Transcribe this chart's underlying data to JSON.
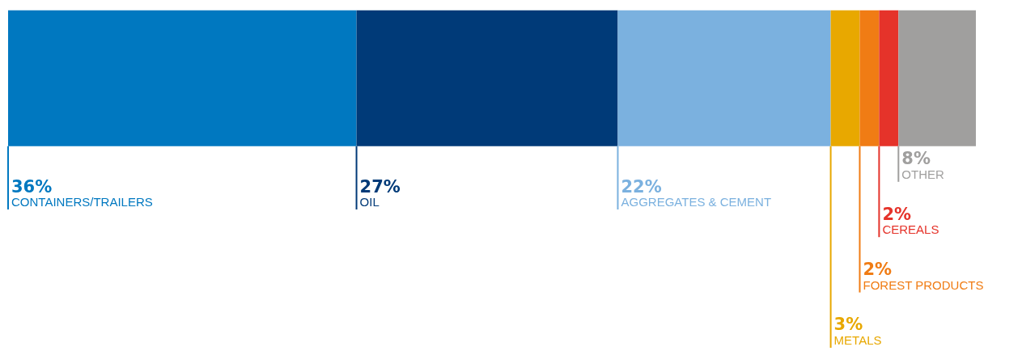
{
  "chart_data": {
    "type": "bar",
    "orientation": "horizontal",
    "stacked": true,
    "categories": [
      null
    ],
    "series": [
      {
        "name": "CONTAINERS/TRAILERS",
        "color": "#0078c0",
        "values": [
          36
        ],
        "value_labels": [
          "36%"
        ]
      },
      {
        "name": "OIL",
        "color": "#003a78",
        "values": [
          27
        ],
        "value_labels": [
          "27%"
        ]
      },
      {
        "name": "AGGREGATES & CEMENT",
        "color": "#7bb1df",
        "values": [
          22
        ],
        "value_labels": [
          "22%"
        ]
      },
      {
        "name": "METALS",
        "color": "#e8a800",
        "values": [
          3
        ],
        "value_labels": [
          "3%"
        ]
      },
      {
        "name": "FOREST PRODUCTS",
        "color": "#f07c14",
        "values": [
          2
        ],
        "value_labels": [
          "2%"
        ]
      },
      {
        "name": "CEREALS",
        "color": "#e5332a",
        "values": [
          2
        ],
        "value_labels": [
          "2%"
        ]
      },
      {
        "name": "OTHER",
        "color": "#a09f9e",
        "values": [
          8
        ],
        "value_labels": [
          "8%"
        ]
      }
    ]
  }
}
